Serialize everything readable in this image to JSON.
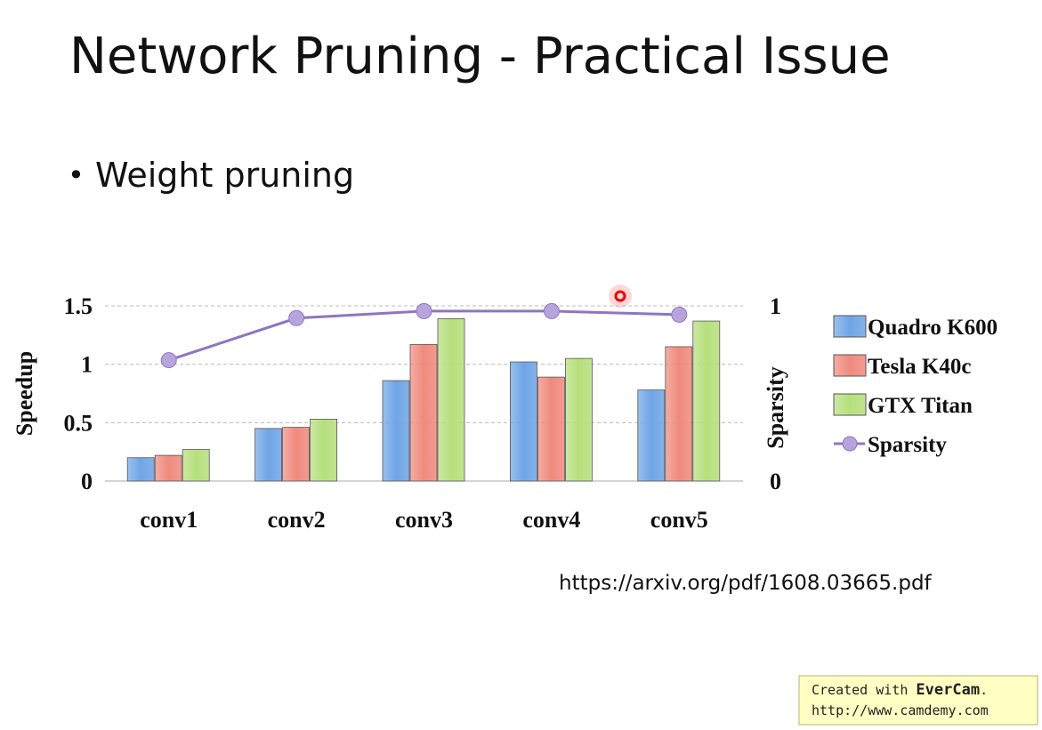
{
  "slide": {
    "title": "Network Pruning - Practical Issue",
    "bullet": "Weight pruning",
    "source": "https://arxiv.org/pdf/1608.03665.pdf"
  },
  "watermark": {
    "line1": [
      "Created with ",
      "EverCam",
      "."
    ],
    "line2": "http://www.camdemy.com"
  },
  "chart_data": {
    "type": "bar",
    "categories": [
      "conv1",
      "conv2",
      "conv3",
      "conv4",
      "conv5"
    ],
    "ylabel": "Speedup",
    "y2label": "Sparsity",
    "ylim": [
      0,
      1.5
    ],
    "yticks": [
      0,
      0.5,
      1,
      1.5
    ],
    "y2lim": [
      0,
      1
    ],
    "y2ticks": [
      0,
      1
    ],
    "grid": true,
    "legend": "right",
    "series": [
      {
        "name": "Quadro K600",
        "color": "#6fa5e6",
        "values": [
          0.2,
          0.45,
          0.86,
          1.02,
          0.78
        ]
      },
      {
        "name": "Tesla K40c",
        "color": "#f08a7e",
        "values": [
          0.22,
          0.46,
          1.17,
          0.89,
          1.15
        ]
      },
      {
        "name": "GTX Titan",
        "color": "#b6df7c",
        "values": [
          0.27,
          0.53,
          1.39,
          1.05,
          1.37
        ]
      },
      {
        "name": "Sparsity",
        "color": "#8e75c2",
        "type": "line",
        "axis": "y2",
        "values": [
          0.69,
          0.93,
          0.97,
          0.97,
          0.95
        ]
      }
    ]
  }
}
